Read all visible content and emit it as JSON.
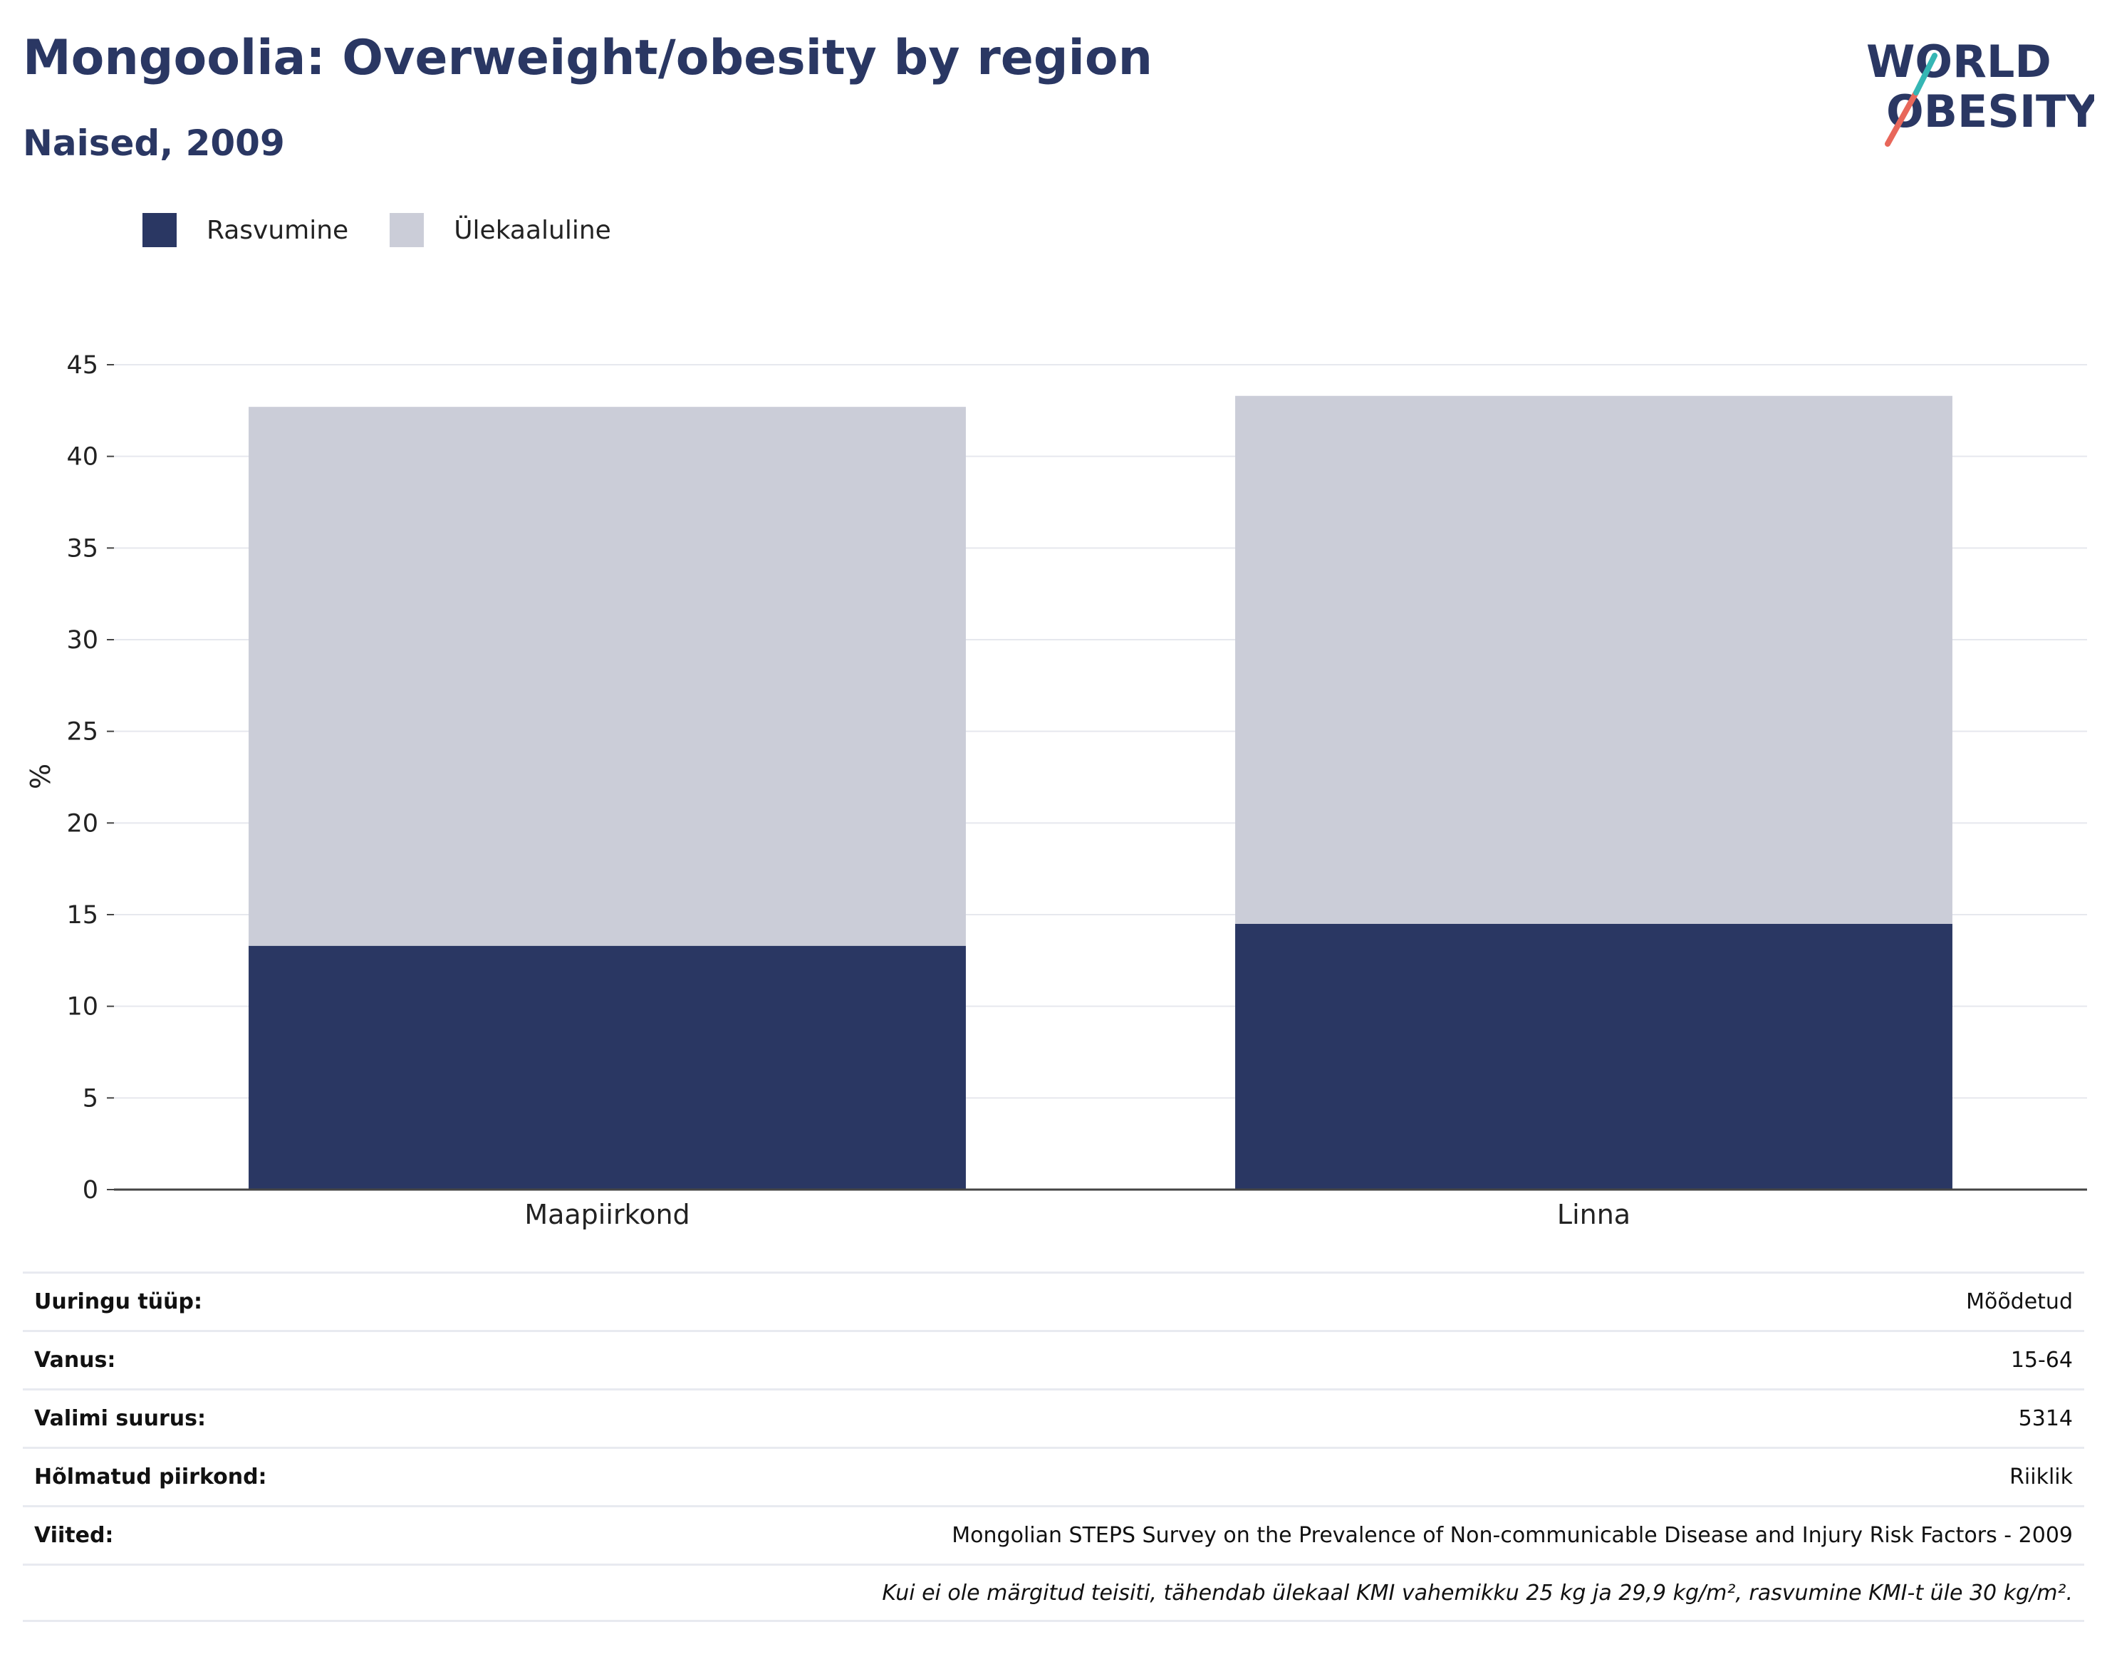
{
  "header": {
    "title": "Mongoolia: Overweight/obesity by region",
    "subtitle": "Naised, 2009"
  },
  "logo": {
    "line1": "WORLD",
    "line2": "OBESITY"
  },
  "colors": {
    "obesity": "#2a3763",
    "overweight": "#cbcdd8",
    "title": "#2a3763"
  },
  "chart_data": {
    "type": "bar",
    "stacked": true,
    "categories": [
      "Maapiirkond",
      "Linna"
    ],
    "series": [
      {
        "name": "Rasvumine",
        "values": [
          13.3,
          14.5
        ]
      },
      {
        "name": "Ülekaaluline",
        "values": [
          29.4,
          28.8
        ]
      }
    ],
    "ylabel": "%",
    "ylim": [
      0,
      45
    ],
    "yticks": [
      0,
      5,
      10,
      15,
      20,
      25,
      30,
      35,
      40,
      45
    ],
    "grid": true,
    "legend_position": "top-left"
  },
  "info": {
    "rows": [
      {
        "key": "Uuringu tüüp:",
        "value": "Mõõdetud"
      },
      {
        "key": "Vanus:",
        "value": "15-64"
      },
      {
        "key": "Valimi suurus:",
        "value": "5314"
      },
      {
        "key": "Hõlmatud piirkond:",
        "value": "Riiklik"
      },
      {
        "key": "Viited:",
        "value": "Mongolian STEPS Survey on the Prevalence of Non-communicable Disease and Injury Risk Factors - 2009"
      }
    ],
    "note": "Kui ei ole märgitud teisiti, tähendab ülekaal KMI vahemikku 25 kg ja 29,9 kg/m², rasvumine KMI-t üle 30 kg/m²."
  }
}
